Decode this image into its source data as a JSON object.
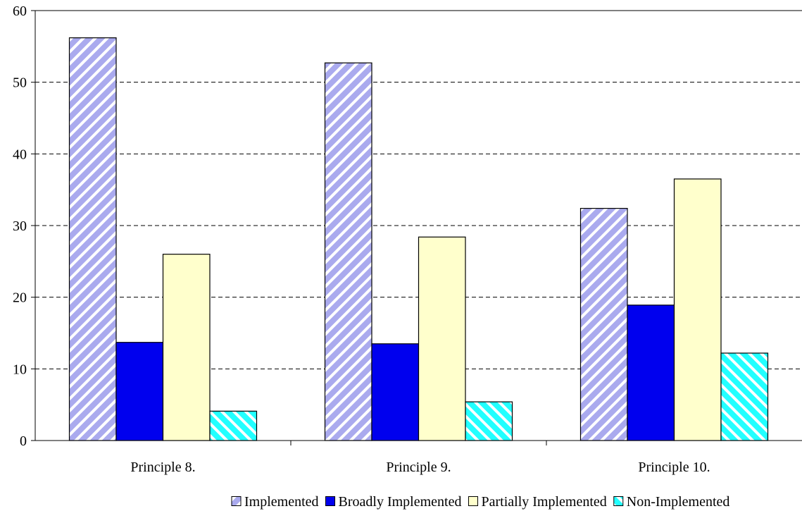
{
  "chart_data": {
    "type": "bar",
    "categories": [
      "Principle 8.",
      "Principle 9.",
      "Principle 10."
    ],
    "series": [
      {
        "name": "Implemented",
        "values": [
          56.2,
          52.7,
          32.4
        ],
        "fill": "#aaaaee",
        "pattern": "diagonal-stripes-up",
        "stripe": "#ffffff"
      },
      {
        "name": "Broadly Implemented",
        "values": [
          13.7,
          13.5,
          18.9
        ],
        "fill": "#0000ee",
        "pattern": "solid"
      },
      {
        "name": "Partially Implemented",
        "values": [
          26.0,
          28.4,
          36.5
        ],
        "fill": "#ffffcc",
        "pattern": "solid"
      },
      {
        "name": "Non-Implemented",
        "values": [
          4.1,
          5.4,
          12.2
        ],
        "fill": "#22ffff",
        "pattern": "diagonal-stripes-down",
        "stripe": "#ffffff"
      }
    ],
    "ylim": [
      0,
      60
    ],
    "yticks": [
      0,
      10,
      20,
      30,
      40,
      50,
      60
    ],
    "grid": "horizontal-dashed",
    "legend_position": "bottom",
    "title": "",
    "xlabel": "",
    "ylabel": ""
  }
}
